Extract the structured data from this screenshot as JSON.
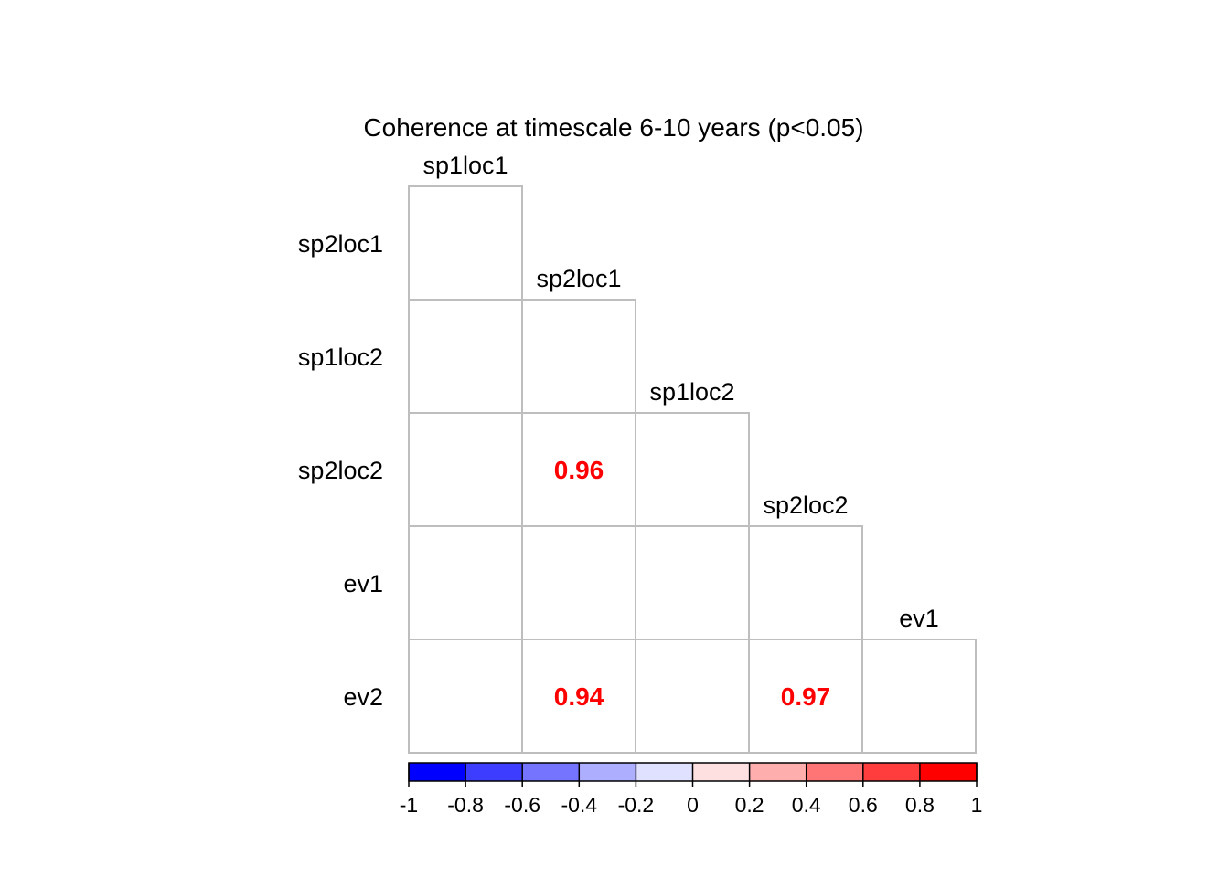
{
  "chart_data": {
    "type": "heatmap",
    "title": "Coherence at timescale 6-10 years (p<0.05)",
    "variables": [
      "sp1loc1",
      "sp2loc1",
      "sp1loc2",
      "sp2loc2",
      "ev1",
      "ev2"
    ],
    "row_labels": [
      "sp2loc1",
      "sp1loc2",
      "sp2loc2",
      "ev1",
      "ev2"
    ],
    "column_labels": [
      "sp1loc1",
      "sp2loc1",
      "sp1loc2",
      "sp2loc2",
      "ev1"
    ],
    "significant_cells": [
      {
        "row": "sp2loc2",
        "column": "sp2loc1",
        "value": 0.96,
        "label": "0.96"
      },
      {
        "row": "ev2",
        "column": "sp2loc1",
        "value": 0.94,
        "label": "0.94"
      },
      {
        "row": "ev2",
        "column": "sp2loc2",
        "value": 0.97,
        "label": "0.97"
      }
    ],
    "value_color": "#ff0000",
    "grid_color": "#bebebe",
    "colorbar": {
      "range": [
        -1,
        1
      ],
      "ticks": [
        "-1",
        "-0.8",
        "-0.6",
        "-0.4",
        "-0.2",
        "0",
        "0.2",
        "0.4",
        "0.6",
        "0.8",
        "1"
      ],
      "colors": [
        "#0000ff",
        "#3d3dff",
        "#7474ff",
        "#aeaeff",
        "#e0e0ff",
        "#ffe0e0",
        "#ffaeae",
        "#ff7474",
        "#ff3d3d",
        "#ff0000"
      ]
    }
  }
}
